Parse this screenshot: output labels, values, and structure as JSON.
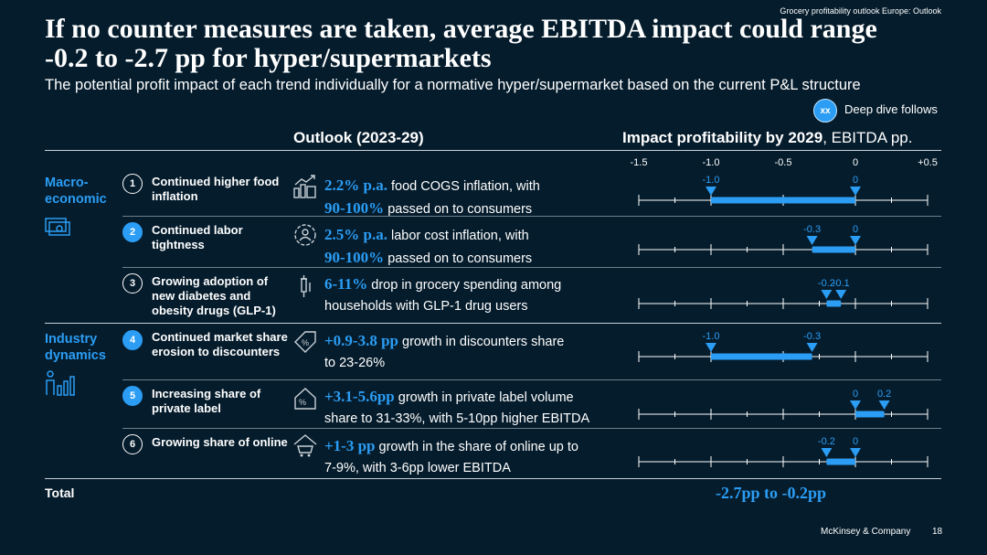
{
  "header_tag": "Grocery profitability outlook Europe: Outlook",
  "title": "If no counter measures are taken, average EBITDA impact could range -0.2 to -2.7 pp for hyper/supermarkets",
  "subtitle": "The potential profit impact of each trend individually for a normative hyper/supermarket based on the current P&L structure",
  "deep_dive": {
    "badge": "xx",
    "label": "Deep dive follows"
  },
  "columns": {
    "outlook": "Outlook (2023-29)",
    "impact_bold": "Impact profitability by 2029",
    "impact_rest": ", EBITDA pp."
  },
  "groups": {
    "macro": "Macro-economic",
    "industry": "Industry dynamics"
  },
  "rows": [
    {
      "num": "1",
      "trend": "Continued higher food inflation",
      "hl": "2.2% p.a.",
      "text1": " food COGS inflation, with",
      "hl2": "90-100%",
      "text2": " passed on to consumers",
      "icon": "inflation-chart-icon"
    },
    {
      "num": "2",
      "trend": "Continued labor tightness",
      "hl": "2.5% p.a.",
      "text1": " labor cost inflation, with",
      "hl2": "90-100%",
      "text2": " passed on to consumers",
      "icon": "gear-people-icon"
    },
    {
      "num": "3",
      "trend": "Growing adoption of new diabetes and obesity drugs (GLP-1)",
      "hl": "6-11%",
      "text1": " drop in grocery spending among",
      "hl2": "",
      "text2": "households with GLP-1 drug users",
      "icon": "syringe-icon"
    },
    {
      "num": "4",
      "trend": "Continued market share erosion to discounters",
      "hl": "+0.9-3.8 pp",
      "text1": " growth in discounters share",
      "hl2": "",
      "text2": "to 23-26%",
      "icon": "discount-tag-icon"
    },
    {
      "num": "5",
      "trend": "Increasing share of private label",
      "hl": "+3.1-5.6pp",
      "text1": " growth in private label volume",
      "hl2": "",
      "text2": "share to 31-33%, with 5-10pp higher EBITDA",
      "icon": "house-percent-icon"
    },
    {
      "num": "6",
      "trend": "Growing share of online",
      "hl": "+1-3 pp",
      "text1": " growth in the share of online up to",
      "hl2": "",
      "text2": "7-9%, with 3-6pp lower EBITDA",
      "icon": "online-cart-icon"
    }
  ],
  "total": {
    "label": "Total",
    "value": "-2.7pp to -0.2pp"
  },
  "footer": {
    "brand": "McKinsey & Company",
    "page": "18"
  },
  "chart_data": {
    "type": "range",
    "title": "Impact profitability by 2029, EBITDA pp.",
    "xlim": [
      -1.5,
      0.5
    ],
    "ticks": [
      -1.5,
      -1.0,
      -0.5,
      0,
      0.5
    ],
    "tick_labels": [
      "-1.5",
      "-1.0",
      "-0.5",
      "0",
      "+0.5"
    ],
    "minor_ticks": [
      -1.25,
      -0.75,
      -0.25,
      0.25
    ],
    "series": [
      {
        "name": "Continued higher food inflation",
        "min": -1.0,
        "max": 0,
        "min_label": "-1.0",
        "max_label": "0"
      },
      {
        "name": "Continued labor tightness",
        "min": -0.3,
        "max": 0,
        "min_label": "-0.3",
        "max_label": "0"
      },
      {
        "name": "Growing adoption of GLP-1",
        "min": -0.2,
        "max": -0.1,
        "min_label": "-0.2",
        "max_label": "-0.1"
      },
      {
        "name": "Continued market share erosion to discounters",
        "min": -1.0,
        "max": -0.3,
        "min_label": "-1.0",
        "max_label": "-0.3"
      },
      {
        "name": "Increasing share of private label",
        "min": 0,
        "max": 0.2,
        "min_label": "0",
        "max_label": "0.2"
      },
      {
        "name": "Growing share of online",
        "min": -0.2,
        "max": 0,
        "min_label": "-0.2",
        "max_label": "0"
      }
    ],
    "colors": {
      "accent": "#2b9df4",
      "axis": "#ffffff"
    }
  }
}
